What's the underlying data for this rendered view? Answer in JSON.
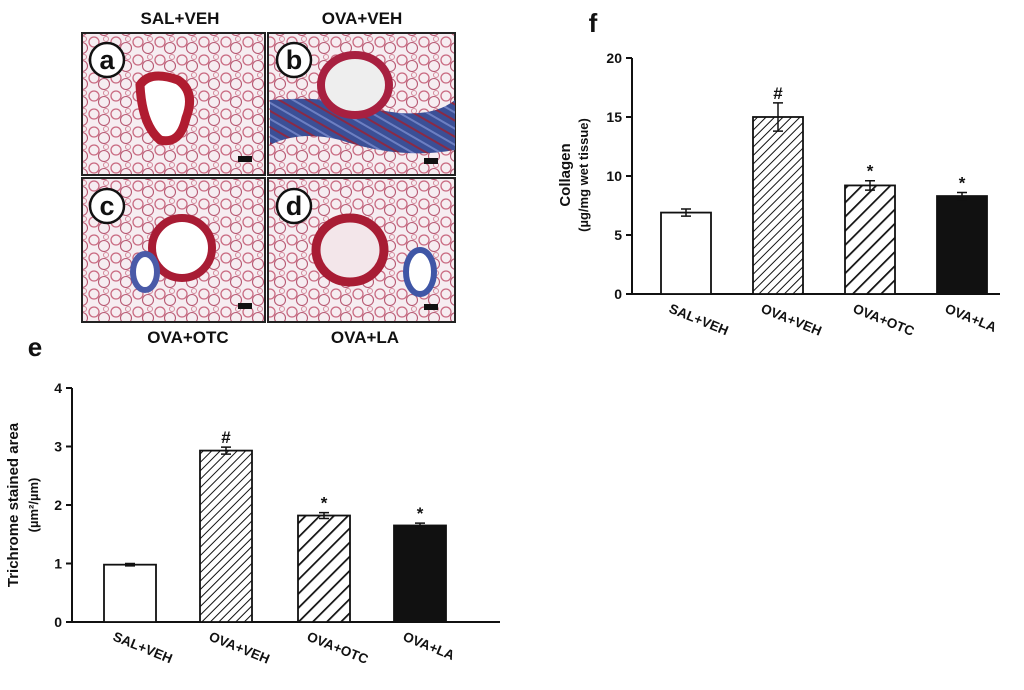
{
  "panels": [
    {
      "letter": "a",
      "label": "SAL+VEH"
    },
    {
      "letter": "b",
      "label": "OVA+VEH"
    },
    {
      "letter": "c",
      "label": "OVA+OTC"
    },
    {
      "letter": "d",
      "label": "OVA+LA"
    }
  ],
  "chart_data": [
    {
      "type": "bar",
      "panel": "e",
      "ylabel": "Trichrome stained area",
      "ylabel_unit": "(µm²/µm)",
      "categories": [
        "SAL+VEH",
        "OVA+VEH",
        "OVA+OTC",
        "OVA+LA"
      ],
      "values": [
        0.98,
        2.93,
        1.82,
        1.65
      ],
      "errors": [
        0.02,
        0.06,
        0.05,
        0.04
      ],
      "annotations": [
        null,
        "#",
        "*",
        "*"
      ],
      "bar_styles": [
        "white",
        "hatch-dense",
        "hatch-wide",
        "black"
      ],
      "ylim": [
        0,
        4
      ],
      "yticks": [
        0,
        1,
        2,
        3,
        4
      ]
    },
    {
      "type": "bar",
      "panel": "f",
      "ylabel": "Collagen",
      "ylabel_unit": "(µg/mg wet tissue)",
      "categories": [
        "SAL+VEH",
        "OVA+VEH",
        "OVA+OTC",
        "OVA+LA"
      ],
      "values": [
        6.9,
        15.0,
        9.2,
        8.3
      ],
      "errors": [
        0.3,
        1.2,
        0.4,
        0.3
      ],
      "annotations": [
        null,
        "#",
        "*",
        "*"
      ],
      "bar_styles": [
        "white",
        "hatch-dense",
        "hatch-wide",
        "black"
      ],
      "ylim": [
        0,
        20
      ],
      "yticks": [
        0,
        5,
        10,
        15,
        20
      ]
    }
  ]
}
